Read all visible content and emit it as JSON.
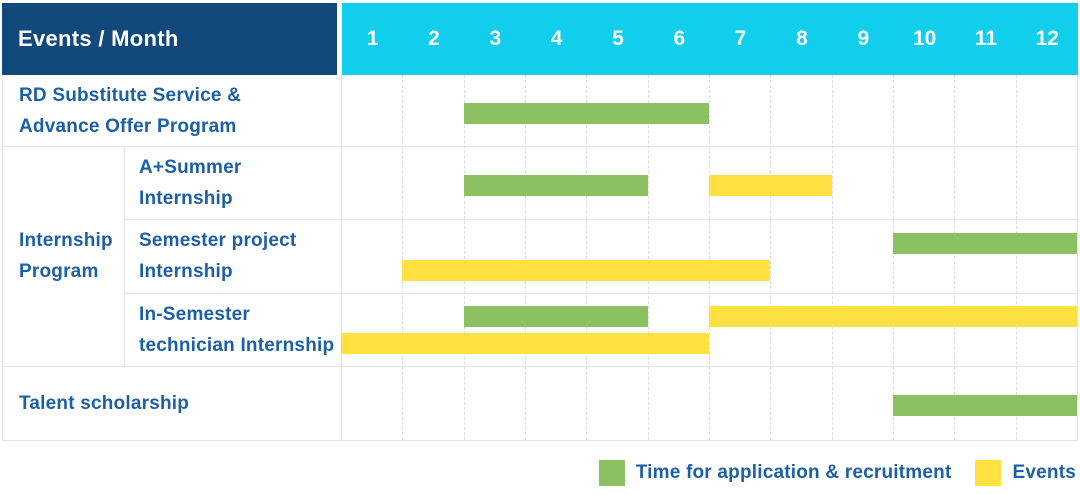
{
  "header": {
    "title": "Events / Month",
    "months": [
      "1",
      "2",
      "3",
      "4",
      "5",
      "6",
      "7",
      "8",
      "9",
      "10",
      "11",
      "12"
    ]
  },
  "colors": {
    "navy": "#11497C",
    "cyan": "#10CEEC",
    "green": "#8BC163",
    "yellow": "#FFE23F",
    "text_blue": "#1D5FA6"
  },
  "group": {
    "label_lines": [
      "Internship",
      "Program"
    ],
    "row_start": 1,
    "row_end": 3
  },
  "rows": [
    {
      "label_lines": [
        "RD Substitute Service &",
        "Advance Offer Program"
      ],
      "child": false,
      "bars": [
        {
          "type": "application",
          "start": 3,
          "end": 6,
          "lane": "single"
        }
      ]
    },
    {
      "label_lines": [
        "A+Summer",
        "Internship"
      ],
      "child": true,
      "bars": [
        {
          "type": "application",
          "start": 3,
          "end": 5,
          "lane": "single"
        },
        {
          "type": "event",
          "start": 7,
          "end": 8,
          "lane": "single"
        }
      ]
    },
    {
      "label_lines": [
        "Semester project",
        "Internship"
      ],
      "child": true,
      "bars": [
        {
          "type": "application",
          "start": 10,
          "end": 12,
          "lane": "top"
        },
        {
          "type": "event",
          "start": 2,
          "end": 7,
          "lane": "bottom"
        }
      ]
    },
    {
      "label_lines": [
        "In-Semester",
        "technician Internship"
      ],
      "child": true,
      "bars": [
        {
          "type": "application",
          "start": 3,
          "end": 5,
          "lane": "top"
        },
        {
          "type": "event",
          "start": 7,
          "end": 12,
          "lane": "top"
        },
        {
          "type": "event",
          "start": 1,
          "end": 6,
          "lane": "bottom"
        }
      ]
    },
    {
      "label_lines": [
        "Talent scholarship"
      ],
      "child": false,
      "bars": [
        {
          "type": "application",
          "start": 10,
          "end": 12,
          "lane": "single"
        }
      ]
    }
  ],
  "legend": {
    "application_label": "Time for application & recruitment",
    "events_label": "Events"
  },
  "chart_data": {
    "type": "gantt",
    "title": "Events / Month",
    "x_unit": "month",
    "x_categories": [
      1,
      2,
      3,
      4,
      5,
      6,
      7,
      8,
      9,
      10,
      11,
      12
    ],
    "legend_position": "bottom-right",
    "series_meaning": {
      "application": "Time for application & recruitment (green)",
      "event": "Events (yellow)"
    },
    "tasks": [
      {
        "group": null,
        "name": "RD Substitute Service & Advance Offer Program",
        "application_month_ranges": [
          [
            3,
            6
          ]
        ],
        "event_month_ranges": []
      },
      {
        "group": "Internship Program",
        "name": "A+Summer Internship",
        "application_month_ranges": [
          [
            3,
            5
          ]
        ],
        "event_month_ranges": [
          [
            7,
            8
          ]
        ]
      },
      {
        "group": "Internship Program",
        "name": "Semester project Internship",
        "application_month_ranges": [
          [
            10,
            12
          ]
        ],
        "event_month_ranges": [
          [
            2,
            7
          ]
        ]
      },
      {
        "group": "Internship Program",
        "name": "In-Semester technician Internship",
        "application_month_ranges": [
          [
            3,
            5
          ]
        ],
        "event_month_ranges": [
          [
            1,
            6
          ],
          [
            7,
            12
          ]
        ]
      },
      {
        "group": null,
        "name": "Talent scholarship",
        "application_month_ranges": [
          [
            10,
            12
          ]
        ],
        "event_month_ranges": []
      }
    ]
  }
}
